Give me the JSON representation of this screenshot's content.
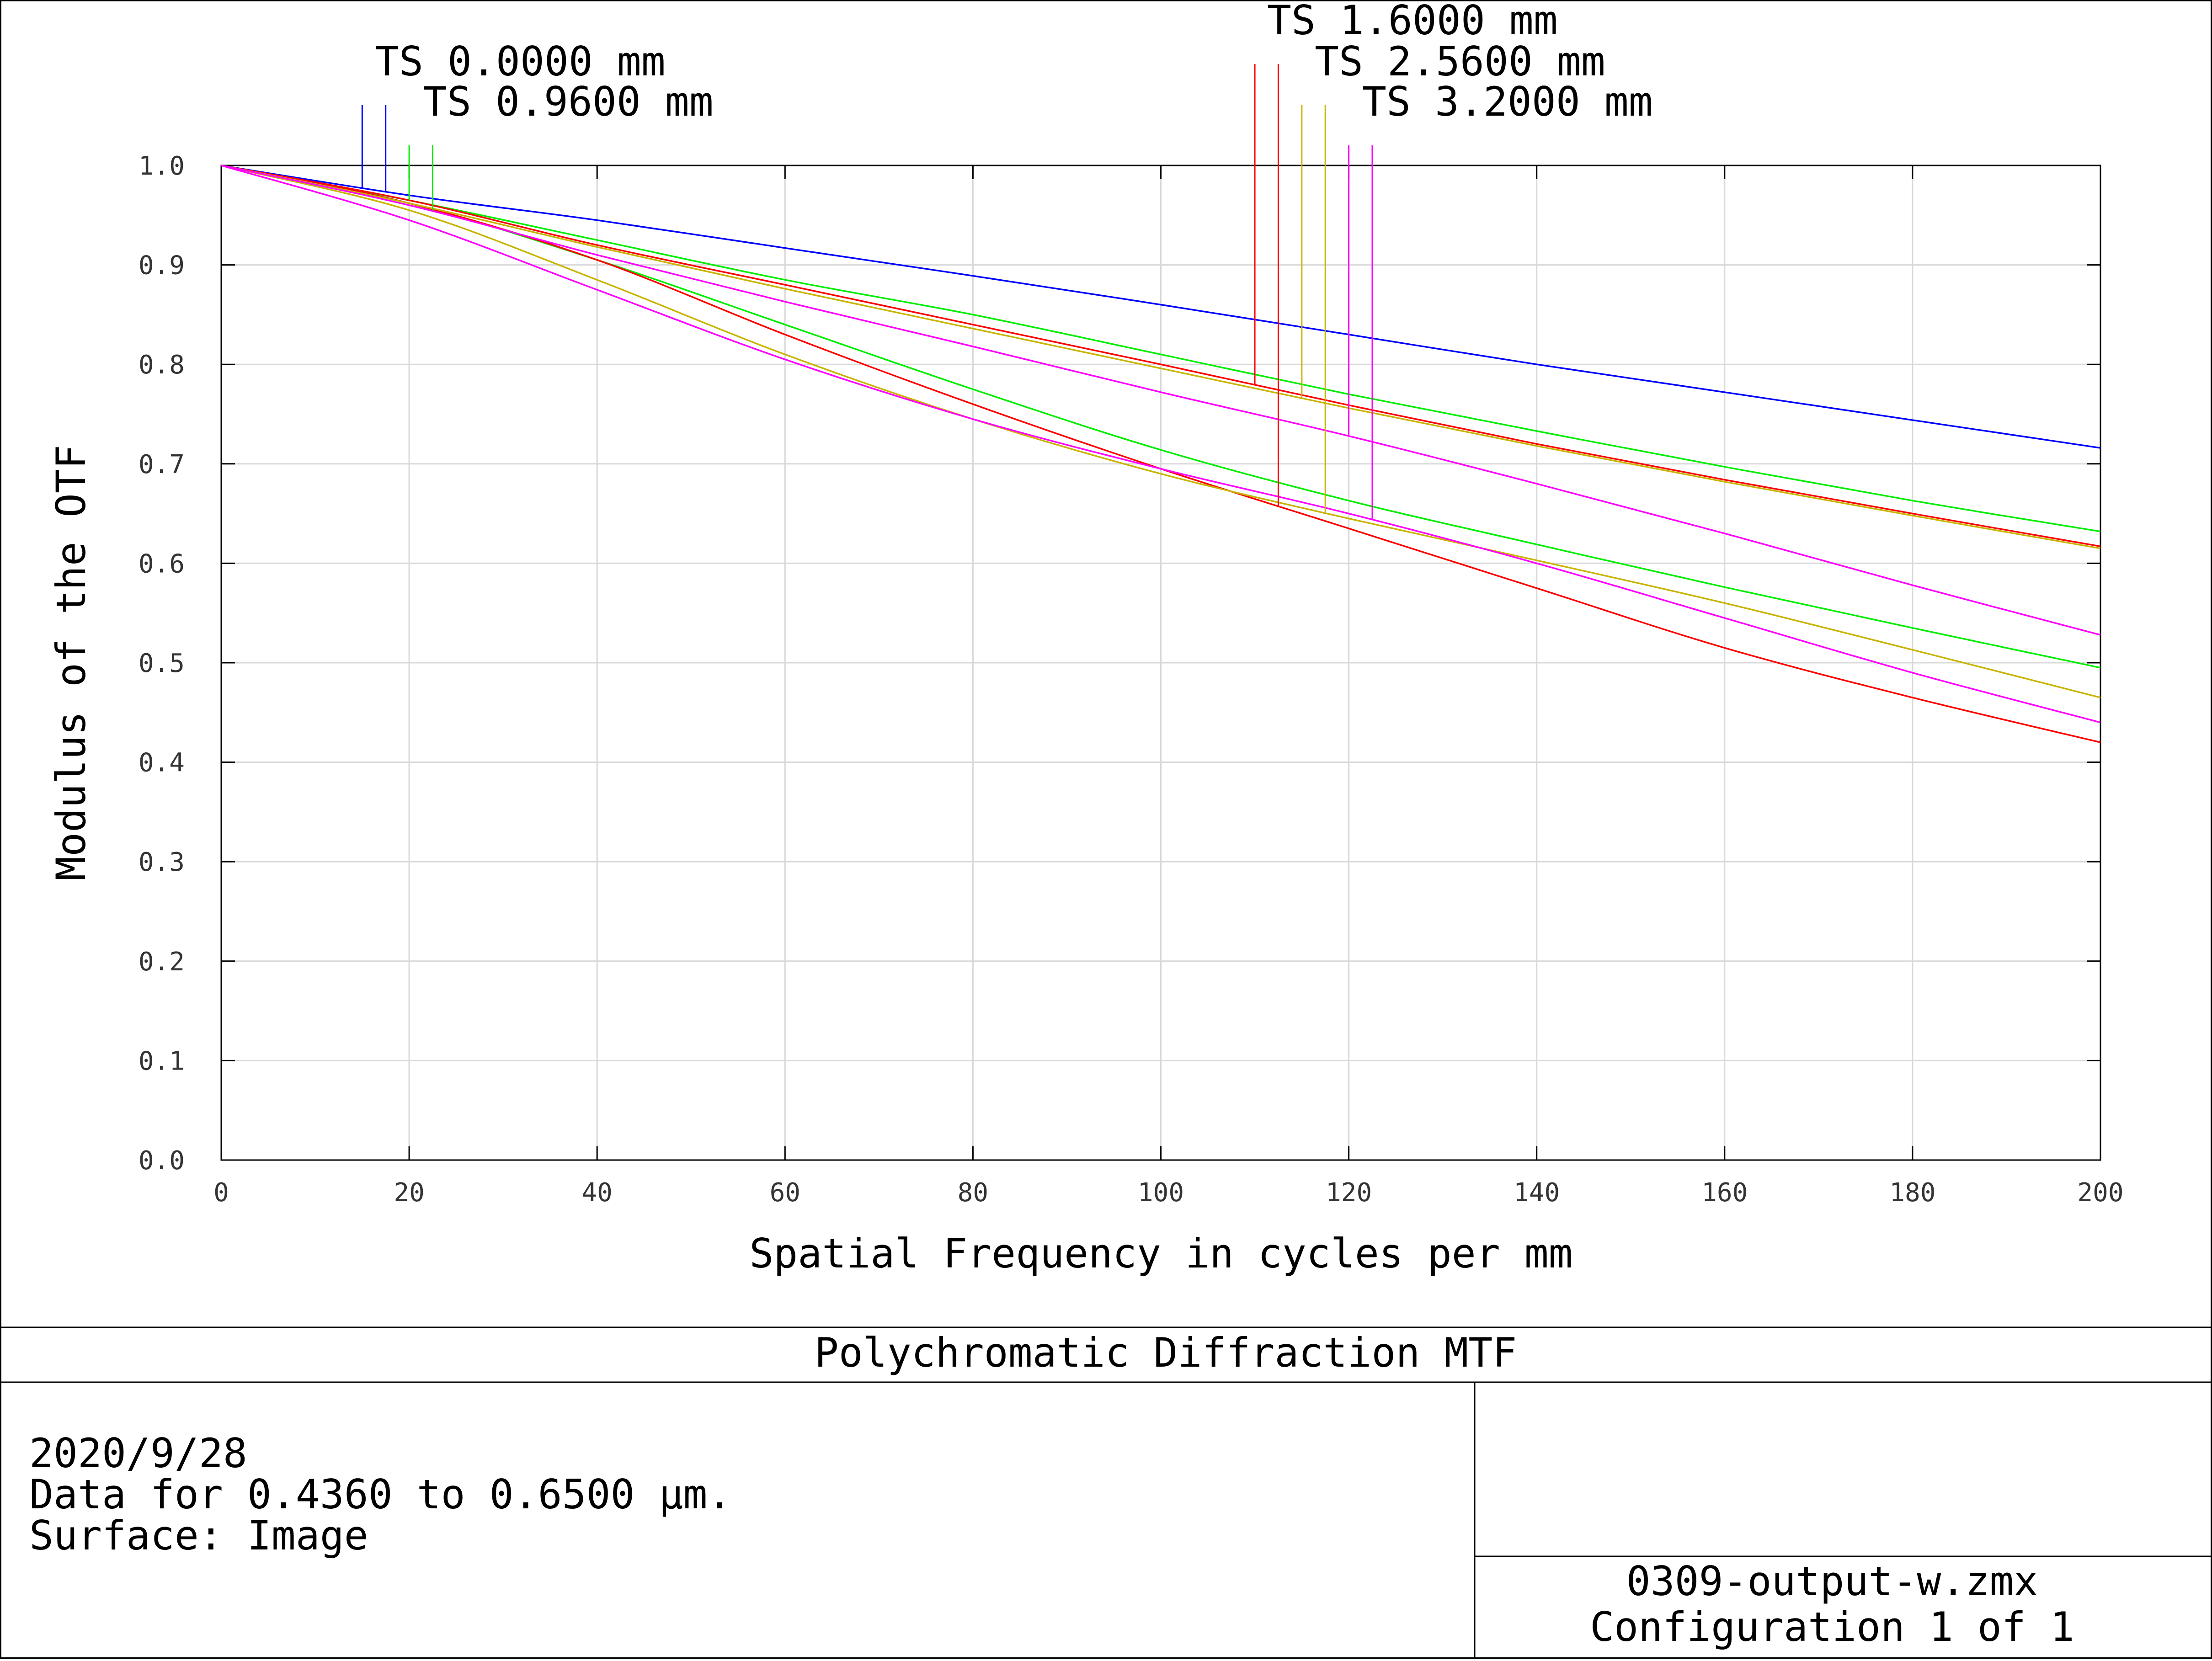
{
  "chart_data": {
    "type": "line",
    "title": "Polychromatic Diffraction MTF",
    "xlabel": "Spatial Frequency in cycles per mm",
    "ylabel": "Modulus of the OTF",
    "xlim": [
      0,
      200
    ],
    "ylim": [
      0,
      1.0
    ],
    "x_ticks": [
      "0",
      "20",
      "40",
      "60",
      "80",
      "100",
      "120",
      "140",
      "160",
      "180",
      "200"
    ],
    "y_ticks": [
      "0.0",
      "0.1",
      "0.2",
      "0.3",
      "0.4",
      "0.5",
      "0.6",
      "0.7",
      "0.8",
      "0.9",
      "1.0"
    ],
    "grid": true,
    "legend_entries": [
      {
        "label": "TS 0.0000 mm",
        "color": "#0000ff",
        "marker_x": [
          15,
          17.5
        ]
      },
      {
        "label": "TS 0.9600 mm",
        "color": "#00ee00",
        "marker_x": [
          20,
          22.5
        ]
      },
      {
        "label": "TS 1.6000 mm",
        "color": "#ff0000",
        "marker_x": [
          110,
          112.5
        ]
      },
      {
        "label": "TS 2.5600 mm",
        "color": "#c8b400",
        "marker_x": [
          115,
          117.5
        ]
      },
      {
        "label": "TS 3.2000 mm",
        "color": "#ff00ff",
        "marker_x": [
          120,
          122.5
        ]
      }
    ],
    "series": [
      {
        "name": "TS 0.0000 mm",
        "color": "#0000ff",
        "x": [
          0,
          20,
          40,
          60,
          80,
          100,
          120,
          140,
          160,
          180,
          200
        ],
        "y": [
          1.0,
          0.97,
          0.945,
          0.917,
          0.889,
          0.86,
          0.83,
          0.8,
          0.772,
          0.744,
          0.716
        ]
      },
      {
        "name": "TS 0.9600 mm",
        "color": "#00ee00",
        "x": [
          0,
          20,
          40,
          60,
          80,
          100,
          120,
          140,
          160,
          180,
          200
        ],
        "y": [
          1.0,
          0.965,
          0.925,
          0.885,
          0.85,
          0.81,
          0.77,
          0.733,
          0.697,
          0.663,
          0.632
        ]
      },
      {
        "name": "TS 0.9600 mm",
        "color": "#00ee00",
        "x": [
          0,
          20,
          40,
          60,
          80,
          100,
          120,
          140,
          160,
          180,
          200
        ],
        "y": [
          1.0,
          0.962,
          0.905,
          0.84,
          0.775,
          0.714,
          0.663,
          0.619,
          0.576,
          0.535,
          0.495
        ]
      },
      {
        "name": "TS 1.6000 mm",
        "color": "#ff0000",
        "x": [
          0,
          20,
          40,
          60,
          80,
          100,
          120,
          140,
          160,
          180,
          200
        ],
        "y": [
          1.0,
          0.965,
          0.92,
          0.88,
          0.84,
          0.8,
          0.759,
          0.72,
          0.684,
          0.65,
          0.617
        ]
      },
      {
        "name": "TS 1.6000 mm",
        "color": "#ff0000",
        "x": [
          0,
          20,
          40,
          60,
          80,
          100,
          120,
          140,
          160,
          180,
          200
        ],
        "y": [
          1.0,
          0.962,
          0.905,
          0.83,
          0.76,
          0.695,
          0.635,
          0.575,
          0.515,
          0.465,
          0.42
        ]
      },
      {
        "name": "TS 2.5600 mm",
        "color": "#c8b400",
        "x": [
          0,
          20,
          40,
          60,
          80,
          100,
          120,
          140,
          160,
          180,
          200
        ],
        "y": [
          1.0,
          0.962,
          0.918,
          0.876,
          0.836,
          0.796,
          0.756,
          0.718,
          0.682,
          0.648,
          0.615
        ]
      },
      {
        "name": "TS 2.5600 mm",
        "color": "#c8b400",
        "x": [
          0,
          20,
          40,
          60,
          80,
          100,
          120,
          140,
          160,
          180,
          200
        ],
        "y": [
          1.0,
          0.955,
          0.885,
          0.81,
          0.745,
          0.69,
          0.645,
          0.603,
          0.56,
          0.513,
          0.465
        ]
      },
      {
        "name": "TS 3.2000 mm",
        "color": "#ff00ff",
        "x": [
          0,
          20,
          40,
          60,
          80,
          100,
          120,
          140,
          160,
          180,
          200
        ],
        "y": [
          1.0,
          0.96,
          0.91,
          0.863,
          0.818,
          0.772,
          0.728,
          0.68,
          0.63,
          0.578,
          0.528
        ]
      },
      {
        "name": "TS 3.2000 mm",
        "color": "#ff00ff",
        "x": [
          0,
          20,
          40,
          60,
          80,
          100,
          120,
          140,
          160,
          180,
          200
        ],
        "y": [
          1.0,
          0.945,
          0.875,
          0.805,
          0.745,
          0.695,
          0.65,
          0.6,
          0.545,
          0.49,
          0.44
        ]
      }
    ]
  },
  "footer": {
    "title": "Polychromatic Diffraction MTF",
    "date": "2020/9/28",
    "data_range": "Data for 0.4360 to 0.6500 µm.",
    "surface": "Surface: Image",
    "filename": "0309-output-w.zmx",
    "configuration": "Configuration 1 of 1"
  }
}
